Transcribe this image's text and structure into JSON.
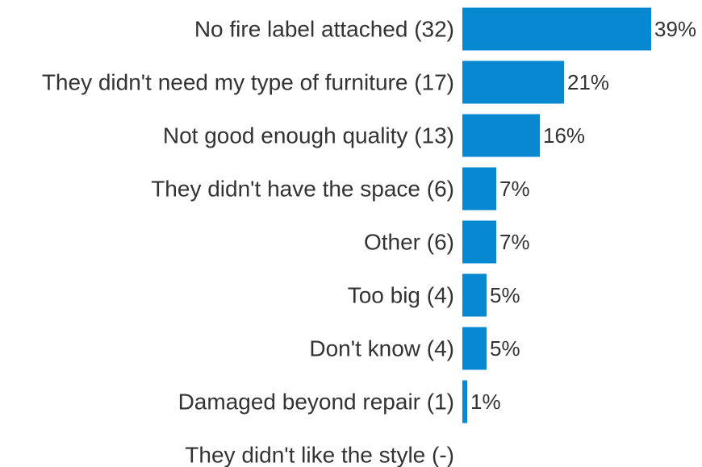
{
  "chart_data": {
    "type": "bar",
    "orientation": "horizontal",
    "categories": [
      "No fire label attached (32)",
      "They didn't need my type of furniture (17)",
      "Not good enough quality (13)",
      "They didn't have the space (6)",
      "Other (6)",
      "Too big (4)",
      "Don't know (4)",
      "Damaged beyond repair (1)",
      "They didn't like the style (-)"
    ],
    "values": [
      39,
      21,
      16,
      7,
      7,
      5,
      5,
      1,
      null
    ],
    "value_labels": [
      "39%",
      "21%",
      "16%",
      "7%",
      "7%",
      "5%",
      "5%",
      "1%",
      ""
    ],
    "value_unit": "%",
    "title": "",
    "xlabel": "",
    "ylabel": "",
    "xlim": [
      0,
      39
    ],
    "grid": false,
    "legend": "none",
    "colors": {
      "bar": "#0788D1",
      "text": "#333333"
    }
  }
}
